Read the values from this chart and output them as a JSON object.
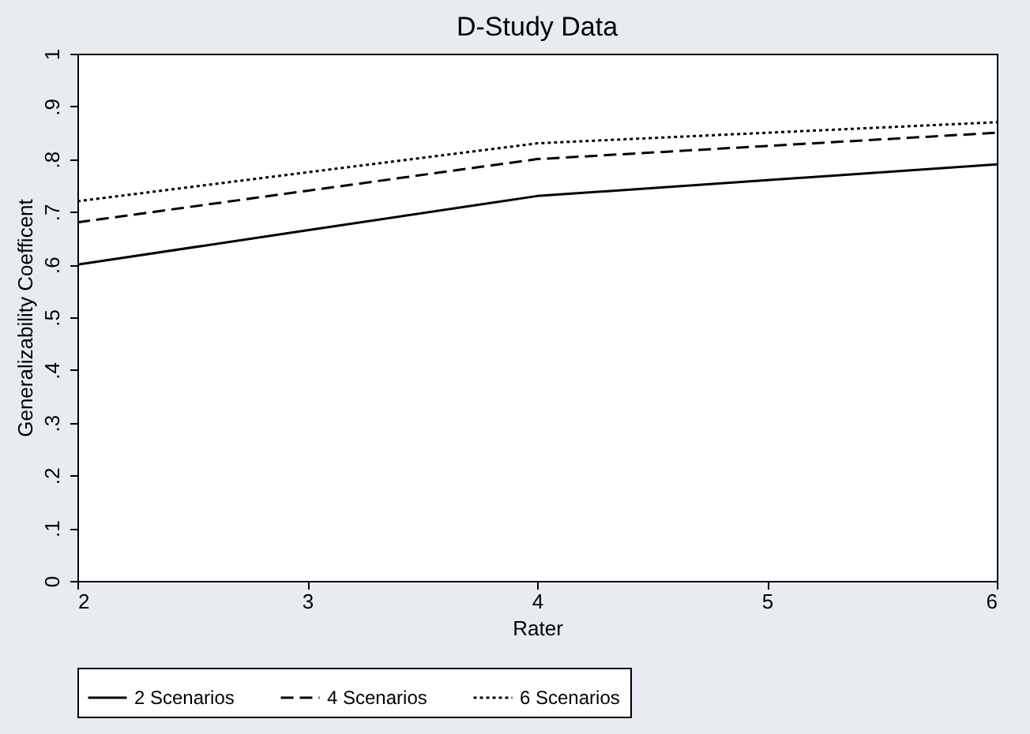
{
  "chart_data": {
    "type": "line",
    "title": "D-Study Data",
    "xlabel": "Rater",
    "ylabel": "Generalizability Coefficent",
    "x": [
      2,
      3,
      4,
      5,
      6
    ],
    "series": [
      {
        "name": "2 Scenarios",
        "color": "#000000",
        "line_style": "solid",
        "values": [
          0.6,
          0.665,
          0.73,
          0.76,
          0.79
        ]
      },
      {
        "name": "4 Scenarios",
        "color": "#000000",
        "line_style": "dashed",
        "values": [
          0.68,
          0.74,
          0.8,
          0.825,
          0.85
        ]
      },
      {
        "name": "6 Scenarios",
        "color": "#000000",
        "line_style": "dotted",
        "values": [
          0.72,
          0.775,
          0.83,
          0.85,
          0.87
        ]
      }
    ],
    "xlim": [
      2,
      6
    ],
    "xticks": [
      2,
      3,
      4,
      5,
      6
    ],
    "ylim": [
      0,
      1
    ],
    "yticks": [
      0,
      {
        "value": 0.1,
        "label": ".1"
      },
      {
        "value": 0.2,
        "label": ".2"
      },
      {
        "value": 0.3,
        "label": ".3"
      },
      {
        "value": 0.4,
        "label": ".4"
      },
      {
        "value": 0.5,
        "label": ".5"
      },
      {
        "value": 0.6,
        "label": ".6"
      },
      {
        "value": 0.7,
        "label": ".7"
      },
      {
        "value": 0.8,
        "label": ".8"
      },
      {
        "value": 0.9,
        "label": ".9"
      },
      1
    ],
    "grid": false,
    "legend": "bottom",
    "marker": "none"
  }
}
